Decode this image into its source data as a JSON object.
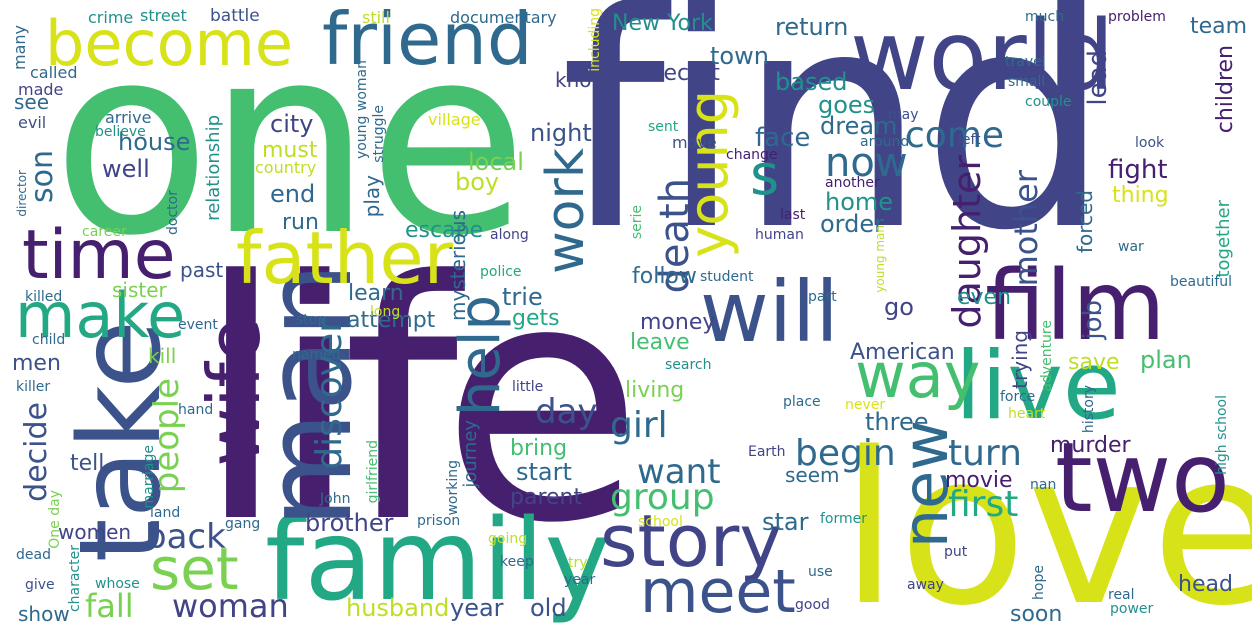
{
  "palette": {
    "dark_purple": "#46206f",
    "indigo": "#414487",
    "slate_blue": "#3b528b",
    "steel_blue": "#2f6a8e",
    "teal": "#21918c",
    "sea_green": "#22a884",
    "green": "#44bf70",
    "light_green": "#7ad151",
    "yellow_green": "#bddf26",
    "yellow": "#d8e219"
  },
  "words": {
    "life": "life",
    "find": "find",
    "one": "one",
    "love": "love",
    "family": "family",
    "man": "man",
    "take": "take",
    "world": "world",
    "friend": "friend",
    "become": "become",
    "father": "father",
    "will": "will",
    "film": "film",
    "two": "two",
    "time": "time",
    "wife": "wife",
    "make": "make",
    "story": "story",
    "meet": "meet",
    "live": "live",
    "new": "new",
    "way": "way",
    "help": "help",
    "set": "set",
    "work": "work",
    "young": "young",
    "s": "s",
    "death": "death",
    "come": "come",
    "now": "now",
    "woman": "woman",
    "back": "back",
    "fall": "fall",
    "daughter": "daughter",
    "mother": "mother",
    "begin": "begin",
    "turn": "turn",
    "first": "first",
    "want": "want",
    "group": "group",
    "girl": "girl",
    "discover": "discover",
    "day": "day",
    "people": "people",
    "decide": "decide",
    "son": "son",
    "brother": "brother",
    "city": "city",
    "house": "house",
    "well": "well",
    "end": "end",
    "run": "run",
    "must": "must",
    "boy": "boy",
    "night": "night",
    "local": "local",
    "dream": "dream",
    "home": "home",
    "order": "order",
    "face": "face",
    "goes": "goes",
    "based": "based",
    "return": "return",
    "town": "town",
    "secret": "secret",
    "know": "know",
    "team": "team",
    "lead": "lead",
    "children": "children",
    "fight": "fight",
    "thing": "thing",
    "forced": "forced",
    "together": "together",
    "job": "job",
    "even": "even",
    "go": "go",
    "trying": "trying",
    "save": "save",
    "plan": "plan",
    "murder": "murder",
    "movie": "movie",
    "three": "three",
    "seem": "seem",
    "star": "star",
    "soon": "soon",
    "head": "head",
    "American": "American",
    "money": "money",
    "leave": "leave",
    "living": "living",
    "bring": "bring",
    "start": "start",
    "parent": "parent",
    "year": "year",
    "old": "old",
    "husband": "husband",
    "show": "show",
    "women": "women",
    "tell": "tell",
    "kill": "kill",
    "sister": "sister",
    "men": "men",
    "past": "past",
    "escape": "escape",
    "follow": "follow",
    "mysterious": "mysterious",
    "learn": "learn",
    "trie": "trie",
    "gets": "gets",
    "attempt": "attempt",
    "journey": "journey",
    "play": "play",
    "relationship": "relationship",
    "New York": "New York",
    "documentary": "documentary",
    "crime": "crime",
    "street": "street",
    "battle": "battle",
    "still": "still",
    "many": "many",
    "called": "called",
    "made": "made",
    "see": "see",
    "evil": "evil",
    "arrive": "arrive",
    "believe": "believe",
    "young woman": "young woman",
    "struggle": "struggle",
    "country": "country",
    "village": "village",
    "including": "including",
    "sent": "sent",
    "move": "move",
    "change": "change",
    "may": "may",
    "around": "around",
    "another": "another",
    "look": "look",
    "left": "left",
    "last": "last",
    "human": "human",
    "war": "war",
    "much": "much",
    "problem": "problem",
    "travel": "travel",
    "small": "small",
    "couple": "couple",
    "director": "director",
    "career": "career",
    "doctor": "doctor",
    "along": "along",
    "police": "police",
    "serie": "serie",
    "student": "student",
    "young man": "young man",
    "part": "part",
    "killed": "killed",
    "event": "event",
    "stop": "stop",
    "long": "long",
    "child": "child",
    "named": "named",
    "killer": "killer",
    "little": "little",
    "place": "place",
    "search": "search",
    "adventure": "adventure",
    "beautiful": "beautiful",
    "force": "force",
    "heart": "heart",
    "never": "never",
    "history": "history",
    "high school": "high school",
    "hand": "hand",
    "marriage": "marriage",
    "girlfriend": "girlfriend",
    "working": "working",
    "John": "John",
    "Earth": "Earth",
    "nan": "nan",
    "One day": "One day",
    "land": "land",
    "gang": "gang",
    "prison": "prison",
    "school": "school",
    "former": "former",
    "dead": "dead",
    "character": "character",
    "keep": "keep",
    "going": "going",
    "try": "try",
    "use": "use",
    "put": "put",
    "give": "give",
    "whose": "whose",
    "away": "away",
    "hope": "hope",
    "real": "real",
    "power": "power",
    "good": "good"
  }
}
